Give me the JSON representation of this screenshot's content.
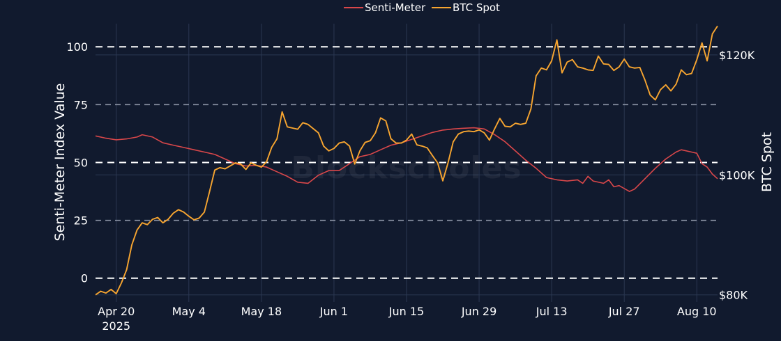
{
  "chart_data": {
    "type": "line",
    "title": "",
    "watermark": "Blockscholes",
    "legend": {
      "placement": "top-center",
      "entries": [
        "Senti-Meter",
        "BTC Spot"
      ]
    },
    "x_axis": {
      "type": "date",
      "range": [
        "2025-04-16",
        "2025-08-14"
      ],
      "ticks": [
        {
          "date": "2025-04-20",
          "label": "Apr 20",
          "sub": "2025"
        },
        {
          "date": "2025-05-04",
          "label": "May 4",
          "sub": ""
        },
        {
          "date": "2025-05-18",
          "label": "May 18",
          "sub": ""
        },
        {
          "date": "2025-06-01",
          "label": "Jun 1",
          "sub": ""
        },
        {
          "date": "2025-06-15",
          "label": "Jun 15",
          "sub": ""
        },
        {
          "date": "2025-06-29",
          "label": "Jun 29",
          "sub": ""
        },
        {
          "date": "2025-07-13",
          "label": "Jul 13",
          "sub": ""
        },
        {
          "date": "2025-07-27",
          "label": "Jul 27",
          "sub": ""
        },
        {
          "date": "2025-08-10",
          "label": "Aug 10",
          "sub": ""
        }
      ]
    },
    "y_left": {
      "label": "Senti-Meter Index Value",
      "range": [
        -8.5,
        110
      ],
      "ticks": [
        0,
        25,
        50,
        75,
        100
      ],
      "tick_labels": [
        "0",
        "25",
        "50",
        "75",
        "100"
      ],
      "dashed_reference_lines": [
        0,
        25,
        50,
        75,
        100
      ],
      "bold_dashed": [
        0,
        50,
        100
      ]
    },
    "y_right": {
      "label": "BTC Spot",
      "range": [
        79500,
        125200
      ],
      "ticks": [
        80000,
        100000,
        120000
      ],
      "tick_labels": [
        "$80K",
        "$100K",
        "$120K"
      ]
    },
    "grid": true,
    "colors": {
      "background": "#111a2e",
      "grid": "#2b3852",
      "senti": "#d9474a",
      "btc": "#f7a530",
      "text": "#ffffff",
      "dashed": "#ffffff",
      "dashed_light": "#8f97a8"
    },
    "series": [
      {
        "name": "Senti-Meter",
        "axis": "left",
        "color": "#d9474a",
        "points": [
          [
            "2025-04-16",
            61.5
          ],
          [
            "2025-04-18",
            60.5
          ],
          [
            "2025-04-20",
            59.8
          ],
          [
            "2025-04-22",
            60.2
          ],
          [
            "2025-04-24",
            61.0
          ],
          [
            "2025-04-25",
            62.0
          ],
          [
            "2025-04-27",
            61.0
          ],
          [
            "2025-04-29",
            58.5
          ],
          [
            "2025-05-01",
            57.5
          ],
          [
            "2025-05-03",
            56.5
          ],
          [
            "2025-05-05",
            55.5
          ],
          [
            "2025-05-07",
            54.5
          ],
          [
            "2025-05-09",
            53.5
          ],
          [
            "2025-05-11",
            51.5
          ],
          [
            "2025-05-13",
            49.5
          ],
          [
            "2025-05-15",
            48.5
          ],
          [
            "2025-05-17",
            48.8
          ],
          [
            "2025-05-19",
            48.0
          ],
          [
            "2025-05-21",
            46.0
          ],
          [
            "2025-05-23",
            44.0
          ],
          [
            "2025-05-25",
            41.5
          ],
          [
            "2025-05-27",
            41.0
          ],
          [
            "2025-05-29",
            44.5
          ],
          [
            "2025-05-31",
            46.5
          ],
          [
            "2025-06-02",
            46.5
          ],
          [
            "2025-06-04",
            49.5
          ],
          [
            "2025-06-06",
            52.5
          ],
          [
            "2025-06-08",
            53.5
          ],
          [
            "2025-06-10",
            55.5
          ],
          [
            "2025-06-12",
            57.5
          ],
          [
            "2025-06-14",
            58.5
          ],
          [
            "2025-06-16",
            60.0
          ],
          [
            "2025-06-18",
            61.5
          ],
          [
            "2025-06-20",
            63.0
          ],
          [
            "2025-06-22",
            64.0
          ],
          [
            "2025-06-24",
            64.5
          ],
          [
            "2025-06-26",
            64.8
          ],
          [
            "2025-06-28",
            65.0
          ],
          [
            "2025-06-30",
            64.5
          ],
          [
            "2025-07-02",
            62.0
          ],
          [
            "2025-07-04",
            59.0
          ],
          [
            "2025-07-06",
            55.0
          ],
          [
            "2025-07-08",
            51.0
          ],
          [
            "2025-07-10",
            47.5
          ],
          [
            "2025-07-12",
            43.5
          ],
          [
            "2025-07-14",
            42.5
          ],
          [
            "2025-07-16",
            42.0
          ],
          [
            "2025-07-18",
            42.5
          ],
          [
            "2025-07-19",
            41.0
          ],
          [
            "2025-07-20",
            44.0
          ],
          [
            "2025-07-21",
            42.0
          ],
          [
            "2025-07-23",
            41.0
          ],
          [
            "2025-07-24",
            42.5
          ],
          [
            "2025-07-25",
            39.5
          ],
          [
            "2025-07-26",
            40.0
          ],
          [
            "2025-07-28",
            37.5
          ],
          [
            "2025-07-29",
            38.5
          ],
          [
            "2025-07-31",
            43.0
          ],
          [
            "2025-08-02",
            47.5
          ],
          [
            "2025-08-04",
            51.5
          ],
          [
            "2025-08-06",
            54.5
          ],
          [
            "2025-08-07",
            55.5
          ],
          [
            "2025-08-09",
            54.5
          ],
          [
            "2025-08-10",
            54.0
          ],
          [
            "2025-08-11",
            49.5
          ],
          [
            "2025-08-12",
            48.0
          ],
          [
            "2025-08-13",
            45.0
          ],
          [
            "2025-08-14",
            43.0
          ]
        ]
      },
      {
        "name": "BTC Spot",
        "axis": "right",
        "color": "#f7a530",
        "points": [
          [
            "2025-04-16",
            80000
          ],
          [
            "2025-04-17",
            80600
          ],
          [
            "2025-04-18",
            80300
          ],
          [
            "2025-04-19",
            80900
          ],
          [
            "2025-04-20",
            80200
          ],
          [
            "2025-04-21",
            82000
          ],
          [
            "2025-04-22",
            84200
          ],
          [
            "2025-04-23",
            88300
          ],
          [
            "2025-04-24",
            90800
          ],
          [
            "2025-04-25",
            92000
          ],
          [
            "2025-04-26",
            91700
          ],
          [
            "2025-04-27",
            92600
          ],
          [
            "2025-04-28",
            92900
          ],
          [
            "2025-04-29",
            92000
          ],
          [
            "2025-04-30",
            92600
          ],
          [
            "2025-05-01",
            93600
          ],
          [
            "2025-05-02",
            94200
          ],
          [
            "2025-05-03",
            93800
          ],
          [
            "2025-05-04",
            93100
          ],
          [
            "2025-05-05",
            92500
          ],
          [
            "2025-05-06",
            92800
          ],
          [
            "2025-05-07",
            93800
          ],
          [
            "2025-05-08",
            97200
          ],
          [
            "2025-05-09",
            100800
          ],
          [
            "2025-05-10",
            101200
          ],
          [
            "2025-05-11",
            101000
          ],
          [
            "2025-05-12",
            101500
          ],
          [
            "2025-05-13",
            102000
          ],
          [
            "2025-05-14",
            101800
          ],
          [
            "2025-05-15",
            100900
          ],
          [
            "2025-05-16",
            102000
          ],
          [
            "2025-05-17",
            101600
          ],
          [
            "2025-05-18",
            101300
          ],
          [
            "2025-05-19",
            102200
          ],
          [
            "2025-05-20",
            104600
          ],
          [
            "2025-05-21",
            106000
          ],
          [
            "2025-05-22",
            110500
          ],
          [
            "2025-05-23",
            108000
          ],
          [
            "2025-05-24",
            107800
          ],
          [
            "2025-05-25",
            107600
          ],
          [
            "2025-05-26",
            108700
          ],
          [
            "2025-05-27",
            108400
          ],
          [
            "2025-05-28",
            107700
          ],
          [
            "2025-05-29",
            107000
          ],
          [
            "2025-05-30",
            104800
          ],
          [
            "2025-05-31",
            104000
          ],
          [
            "2025-06-01",
            104400
          ],
          [
            "2025-06-02",
            105300
          ],
          [
            "2025-06-03",
            105500
          ],
          [
            "2025-06-04",
            104800
          ],
          [
            "2025-06-05",
            101800
          ],
          [
            "2025-06-06",
            104000
          ],
          [
            "2025-06-07",
            105400
          ],
          [
            "2025-06-08",
            105700
          ],
          [
            "2025-06-09",
            107000
          ],
          [
            "2025-06-10",
            109500
          ],
          [
            "2025-06-11",
            109000
          ],
          [
            "2025-06-12",
            106000
          ],
          [
            "2025-06-13",
            105300
          ],
          [
            "2025-06-14",
            105300
          ],
          [
            "2025-06-15",
            105800
          ],
          [
            "2025-06-16",
            106800
          ],
          [
            "2025-06-17",
            105000
          ],
          [
            "2025-06-18",
            104800
          ],
          [
            "2025-06-19",
            104500
          ],
          [
            "2025-06-20",
            103200
          ],
          [
            "2025-06-21",
            102000
          ],
          [
            "2025-06-22",
            99000
          ],
          [
            "2025-06-23",
            102000
          ],
          [
            "2025-06-24",
            105500
          ],
          [
            "2025-06-25",
            106800
          ],
          [
            "2025-06-26",
            107200
          ],
          [
            "2025-06-27",
            107300
          ],
          [
            "2025-06-28",
            107200
          ],
          [
            "2025-06-29",
            107500
          ],
          [
            "2025-06-30",
            107000
          ],
          [
            "2025-07-01",
            105800
          ],
          [
            "2025-07-02",
            107700
          ],
          [
            "2025-07-03",
            109400
          ],
          [
            "2025-07-04",
            108100
          ],
          [
            "2025-07-05",
            108000
          ],
          [
            "2025-07-06",
            108600
          ],
          [
            "2025-07-07",
            108400
          ],
          [
            "2025-07-08",
            108600
          ],
          [
            "2025-07-09",
            111000
          ],
          [
            "2025-07-10",
            116500
          ],
          [
            "2025-07-11",
            117800
          ],
          [
            "2025-07-12",
            117500
          ],
          [
            "2025-07-13",
            119000
          ],
          [
            "2025-07-14",
            122500
          ],
          [
            "2025-07-15",
            117000
          ],
          [
            "2025-07-16",
            118800
          ],
          [
            "2025-07-17",
            119200
          ],
          [
            "2025-07-18",
            118000
          ],
          [
            "2025-07-19",
            117800
          ],
          [
            "2025-07-20",
            117500
          ],
          [
            "2025-07-21",
            117400
          ],
          [
            "2025-07-22",
            119800
          ],
          [
            "2025-07-23",
            118500
          ],
          [
            "2025-07-24",
            118400
          ],
          [
            "2025-07-25",
            117400
          ],
          [
            "2025-07-26",
            118000
          ],
          [
            "2025-07-27",
            119300
          ],
          [
            "2025-07-28",
            118000
          ],
          [
            "2025-07-29",
            117800
          ],
          [
            "2025-07-30",
            117900
          ],
          [
            "2025-07-31",
            115800
          ],
          [
            "2025-08-01",
            113300
          ],
          [
            "2025-08-02",
            112500
          ],
          [
            "2025-08-03",
            114200
          ],
          [
            "2025-08-04",
            115000
          ],
          [
            "2025-08-05",
            114000
          ],
          [
            "2025-08-06",
            115100
          ],
          [
            "2025-08-07",
            117500
          ],
          [
            "2025-08-08",
            116700
          ],
          [
            "2025-08-09",
            116900
          ],
          [
            "2025-08-10",
            119200
          ],
          [
            "2025-08-11",
            122000
          ],
          [
            "2025-08-12",
            119000
          ],
          [
            "2025-08-13",
            123500
          ],
          [
            "2025-08-14",
            124800
          ]
        ]
      }
    ]
  }
}
